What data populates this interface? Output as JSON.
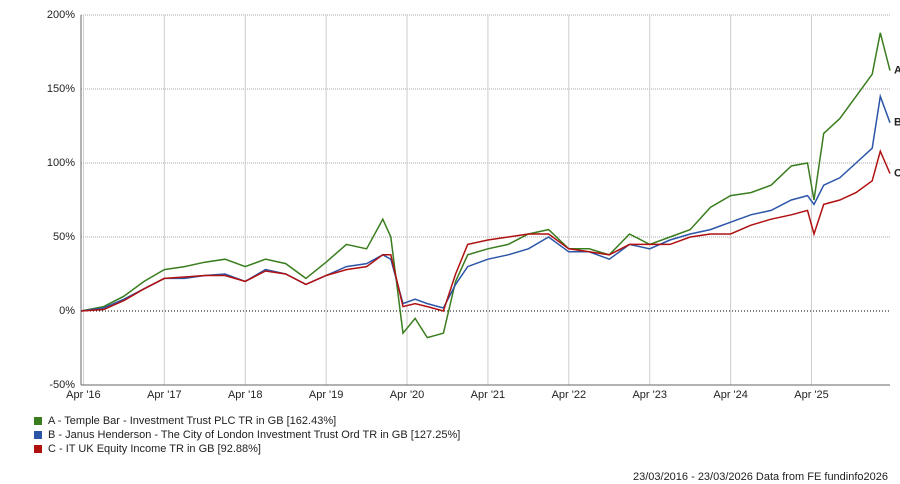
{
  "chart_data": {
    "type": "line",
    "x": [
      2016.22,
      2016.5,
      2016.75,
      2017.0,
      2017.25,
      2017.5,
      2017.75,
      2018.0,
      2018.25,
      2018.5,
      2018.75,
      2019.0,
      2019.25,
      2019.5,
      2019.75,
      2019.95,
      2020.05,
      2020.2,
      2020.35,
      2020.5,
      2020.7,
      2020.85,
      2021.0,
      2021.25,
      2021.5,
      2021.75,
      2022.0,
      2022.25,
      2022.5,
      2022.75,
      2023.0,
      2023.25,
      2023.5,
      2023.75,
      2024.0,
      2024.25,
      2024.5,
      2024.75,
      2025.0,
      2025.2,
      2025.28,
      2025.4,
      2025.6,
      2025.8,
      2026.0,
      2026.1,
      2026.22
    ],
    "series": [
      {
        "name": "A - Temple Bar - Investment Trust PLC TR in GB [162.43%]",
        "end_label": "A",
        "color": "#3a7d1e",
        "values": [
          0,
          3,
          10,
          20,
          28,
          30,
          33,
          35,
          30,
          35,
          32,
          22,
          33,
          45,
          42,
          62,
          50,
          -15,
          -5,
          -18,
          -15,
          20,
          38,
          42,
          45,
          52,
          55,
          42,
          42,
          38,
          52,
          45,
          50,
          55,
          70,
          78,
          80,
          85,
          98,
          100,
          75,
          120,
          130,
          145,
          160,
          188,
          162.43
        ]
      },
      {
        "name": "B - Janus Henderson - The City of London Investment Trust Ord TR in GB [127.25%]",
        "end_label": "B",
        "color": "#2c55a8",
        "values": [
          0,
          2,
          8,
          15,
          22,
          22,
          24,
          25,
          20,
          28,
          25,
          18,
          24,
          30,
          32,
          38,
          35,
          5,
          8,
          5,
          2,
          18,
          30,
          35,
          38,
          42,
          50,
          40,
          40,
          35,
          45,
          42,
          48,
          52,
          55,
          60,
          65,
          68,
          75,
          78,
          72,
          85,
          90,
          100,
          110,
          145,
          127.25
        ]
      },
      {
        "name": "C - IT UK Equity Income TR in GB [92.88%]",
        "end_label": "C",
        "color": "#b01010",
        "values": [
          0,
          1,
          7,
          15,
          22,
          23,
          24,
          24,
          20,
          27,
          25,
          18,
          24,
          28,
          30,
          38,
          38,
          3,
          5,
          3,
          0,
          25,
          45,
          48,
          50,
          52,
          52,
          42,
          40,
          38,
          45,
          45,
          45,
          50,
          52,
          52,
          58,
          62,
          65,
          68,
          52,
          72,
          75,
          80,
          88,
          108,
          92.88
        ]
      }
    ],
    "xlim": [
      2016.22,
      2026.22
    ],
    "xticks": [
      {
        "value": 2016.25,
        "label": "Apr '16"
      },
      {
        "value": 2017.25,
        "label": "Apr '17"
      },
      {
        "value": 2018.25,
        "label": "Apr '18"
      },
      {
        "value": 2019.25,
        "label": "Apr '19"
      },
      {
        "value": 2020.25,
        "label": "Apr '20"
      },
      {
        "value": 2021.25,
        "label": "Apr '21"
      },
      {
        "value": 2022.25,
        "label": "Apr '22"
      },
      {
        "value": 2023.25,
        "label": "Apr '23"
      },
      {
        "value": 2024.25,
        "label": "Apr '24"
      },
      {
        "value": 2025.25,
        "label": "Apr '25"
      }
    ],
    "ylim": [
      -50,
      200
    ],
    "yticks": [
      {
        "value": -50,
        "label": "-50%"
      },
      {
        "value": 0,
        "label": "0%"
      },
      {
        "value": 50,
        "label": "50%"
      },
      {
        "value": 100,
        "label": "100%"
      },
      {
        "value": 150,
        "label": "150%"
      },
      {
        "value": 200,
        "label": "200%"
      }
    ],
    "grid": true,
    "footer": "23/03/2016 - 23/03/2026 Data from FE fundinfo2026"
  }
}
